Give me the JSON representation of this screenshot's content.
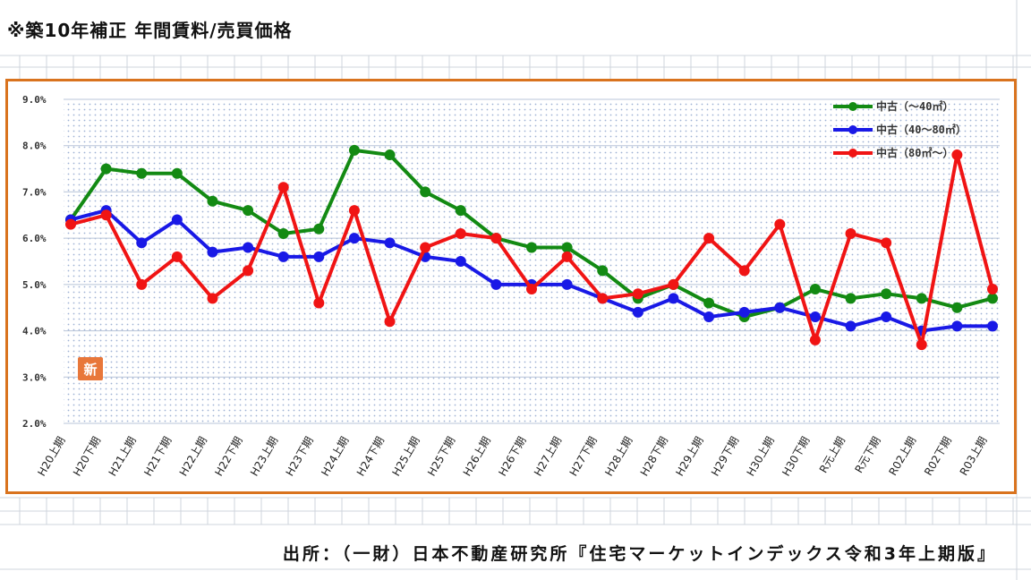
{
  "header": {
    "title": "※築10年補正 年間賃料/売買価格"
  },
  "source": {
    "text": "出所：（一財）日本不動産研究所『住宅マーケットインデックス令和3年上期版』"
  },
  "badge": {
    "text": "新"
  },
  "chart_data": {
    "type": "line",
    "ylim": [
      2.0,
      9.0
    ],
    "y_ticks": [
      "2.0%",
      "3.0%",
      "4.0%",
      "5.0%",
      "6.0%",
      "7.0%",
      "8.0%",
      "9.0%"
    ],
    "grid": true,
    "legend_position": "top-right",
    "categories": [
      "H20上期",
      "H20下期",
      "H21上期",
      "H21下期",
      "H22上期",
      "H22下期",
      "H23上期",
      "H23下期",
      "H24上期",
      "H24下期",
      "H25上期",
      "H25下期",
      "H26上期",
      "H26下期",
      "H27上期",
      "H27下期",
      "H28上期",
      "H28下期",
      "H29上期",
      "H29下期",
      "H30上期",
      "H30下期",
      "R元上期",
      "R元下期",
      "R02上期",
      "R02下期",
      "R03上期"
    ],
    "series": [
      {
        "name": "中古（～40㎡）",
        "color": "#138a13",
        "values": [
          6.4,
          7.5,
          7.4,
          7.4,
          6.8,
          6.6,
          6.1,
          6.2,
          7.9,
          7.8,
          7.0,
          6.6,
          6.0,
          5.8,
          5.8,
          5.3,
          4.7,
          5.0,
          4.6,
          4.3,
          4.5,
          4.9,
          4.7,
          4.8,
          4.7,
          4.5,
          4.7
        ]
      },
      {
        "name": "中古（40～80㎡）",
        "color": "#1919e6",
        "values": [
          6.4,
          6.6,
          5.9,
          6.4,
          5.7,
          5.8,
          5.6,
          5.6,
          6.0,
          5.9,
          5.6,
          5.5,
          5.0,
          5.0,
          5.0,
          4.7,
          4.4,
          4.7,
          4.3,
          4.4,
          4.5,
          4.3,
          4.1,
          4.3,
          4.0,
          4.1,
          4.1
        ]
      },
      {
        "name": "中古（80㎡～）",
        "color": "#f01414",
        "values": [
          6.3,
          6.5,
          5.0,
          5.6,
          4.7,
          5.3,
          7.1,
          4.6,
          6.6,
          4.2,
          5.8,
          6.1,
          6.0,
          4.9,
          5.6,
          4.7,
          4.8,
          5.0,
          6.0,
          5.3,
          6.3,
          3.8,
          6.1,
          5.9,
          3.7,
          7.8,
          4.9
        ]
      }
    ]
  }
}
